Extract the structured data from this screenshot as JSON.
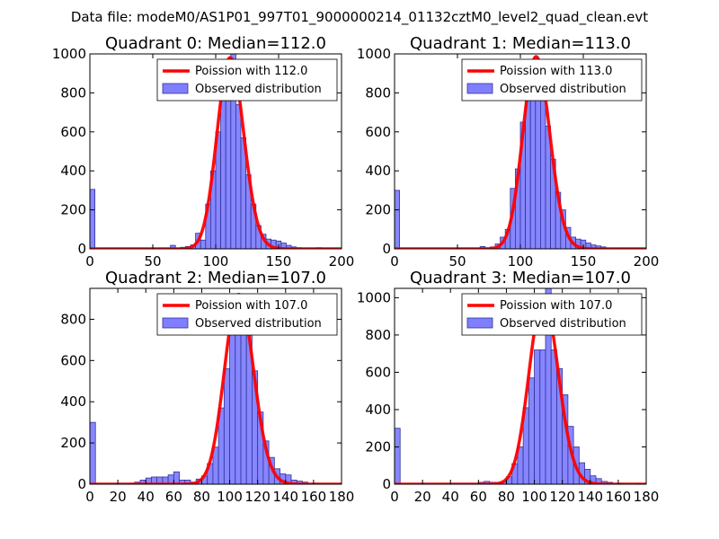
{
  "figure_title": "Data file: modeM0/AS1P01_997T01_9000000214_01132cztM0_level2_quad_clean.evt",
  "colors": {
    "hist_fill": "#7f7fff",
    "hist_edge": "#333399",
    "poisson_line": "#ff0000"
  },
  "chart_data": [
    {
      "type": "bar",
      "title": "Quadrant 0: Median=112.0",
      "median": 112.0,
      "xlim": [
        0,
        200
      ],
      "ylim": [
        0,
        1000
      ],
      "xticks": [
        0,
        50,
        100,
        150,
        200
      ],
      "yticks": [
        0,
        200,
        400,
        600,
        800,
        1000
      ],
      "bin_width": 4,
      "bins": [
        [
          0,
          305
        ],
        [
          64,
          18
        ],
        [
          72,
          8
        ],
        [
          76,
          12
        ],
        [
          80,
          20
        ],
        [
          84,
          80
        ],
        [
          88,
          45
        ],
        [
          92,
          230
        ],
        [
          96,
          400
        ],
        [
          100,
          600
        ],
        [
          104,
          760
        ],
        [
          108,
          760
        ],
        [
          112,
          1000
        ],
        [
          116,
          740
        ],
        [
          120,
          570
        ],
        [
          124,
          380
        ],
        [
          128,
          230
        ],
        [
          132,
          120
        ],
        [
          136,
          75
        ],
        [
          140,
          50
        ],
        [
          144,
          45
        ],
        [
          148,
          40
        ],
        [
          152,
          30
        ],
        [
          156,
          18
        ],
        [
          160,
          10
        ],
        [
          164,
          6
        ],
        [
          180,
          6
        ]
      ],
      "legend": {
        "line_label": "Poission with 112.0",
        "hist_label": "Observed distribution",
        "position": "upper right"
      },
      "poisson": {
        "mean": 112.0,
        "amplitude": 980
      }
    },
    {
      "type": "bar",
      "title": "Quadrant 1: Median=113.0",
      "median": 113.0,
      "xlim": [
        0,
        200
      ],
      "ylim": [
        0,
        1000
      ],
      "xticks": [
        0,
        50,
        100,
        150,
        200
      ],
      "yticks": [
        0,
        200,
        400,
        600,
        800,
        1000
      ],
      "bin_width": 4,
      "bins": [
        [
          0,
          300
        ],
        [
          68,
          12
        ],
        [
          76,
          10
        ],
        [
          80,
          25
        ],
        [
          84,
          60
        ],
        [
          88,
          100
        ],
        [
          92,
          310
        ],
        [
          96,
          410
        ],
        [
          100,
          650
        ],
        [
          104,
          770
        ],
        [
          108,
          790
        ],
        [
          112,
          960
        ],
        [
          116,
          760
        ],
        [
          120,
          630
        ],
        [
          124,
          460
        ],
        [
          128,
          290
        ],
        [
          132,
          200
        ],
        [
          136,
          110
        ],
        [
          140,
          60
        ],
        [
          144,
          50
        ],
        [
          148,
          45
        ],
        [
          152,
          30
        ],
        [
          156,
          20
        ],
        [
          160,
          15
        ],
        [
          164,
          10
        ],
        [
          180,
          5
        ]
      ],
      "legend": {
        "line_label": "Poission with 113.0",
        "hist_label": "Observed distribution",
        "position": "upper right"
      },
      "poisson": {
        "mean": 113.0,
        "amplitude": 985
      }
    },
    {
      "type": "bar",
      "title": "Quadrant 2: Median=107.0",
      "median": 107.0,
      "xlim": [
        0,
        180
      ],
      "ylim": [
        0,
        950
      ],
      "xticks": [
        0,
        20,
        40,
        60,
        80,
        100,
        120,
        140,
        160,
        180
      ],
      "yticks": [
        0,
        200,
        400,
        600,
        800
      ],
      "bin_width": 4,
      "bins": [
        [
          0,
          300
        ],
        [
          28,
          5
        ],
        [
          32,
          10
        ],
        [
          36,
          20
        ],
        [
          40,
          30
        ],
        [
          44,
          35
        ],
        [
          48,
          35
        ],
        [
          52,
          35
        ],
        [
          56,
          45
        ],
        [
          60,
          60
        ],
        [
          64,
          20
        ],
        [
          68,
          20
        ],
        [
          72,
          10
        ],
        [
          76,
          25
        ],
        [
          80,
          40
        ],
        [
          84,
          100
        ],
        [
          88,
          180
        ],
        [
          92,
          370
        ],
        [
          96,
          560
        ],
        [
          100,
          820
        ],
        [
          104,
          740
        ],
        [
          108,
          920
        ],
        [
          112,
          820
        ],
        [
          116,
          550
        ],
        [
          120,
          350
        ],
        [
          124,
          210
        ],
        [
          128,
          130
        ],
        [
          132,
          75
        ],
        [
          136,
          50
        ],
        [
          140,
          45
        ],
        [
          144,
          20
        ],
        [
          148,
          15
        ],
        [
          152,
          10
        ],
        [
          160,
          5
        ]
      ],
      "legend": {
        "line_label": "Poission with 107.0",
        "hist_label": "Observed distribution",
        "position": "upper right"
      },
      "poisson": {
        "mean": 107.0,
        "amplitude": 920
      }
    },
    {
      "type": "bar",
      "title": "Quadrant 3: Median=107.0",
      "median": 107.0,
      "xlim": [
        0,
        180
      ],
      "ylim": [
        0,
        1050
      ],
      "xticks": [
        0,
        20,
        40,
        60,
        80,
        100,
        120,
        140,
        160,
        180
      ],
      "yticks": [
        0,
        200,
        400,
        600,
        800,
        1000
      ],
      "bin_width": 4,
      "bins": [
        [
          0,
          300
        ],
        [
          60,
          10
        ],
        [
          64,
          15
        ],
        [
          68,
          10
        ],
        [
          72,
          10
        ],
        [
          76,
          12
        ],
        [
          80,
          40
        ],
        [
          84,
          110
        ],
        [
          88,
          200
        ],
        [
          92,
          410
        ],
        [
          96,
          570
        ],
        [
          100,
          720
        ],
        [
          104,
          720
        ],
        [
          108,
          1050
        ],
        [
          112,
          720
        ],
        [
          116,
          620
        ],
        [
          120,
          480
        ],
        [
          124,
          310
        ],
        [
          128,
          200
        ],
        [
          132,
          115
        ],
        [
          136,
          80
        ],
        [
          140,
          45
        ],
        [
          144,
          30
        ],
        [
          148,
          15
        ],
        [
          152,
          10
        ],
        [
          160,
          5
        ],
        [
          172,
          5
        ]
      ],
      "legend": {
        "line_label": "Poission with 107.0",
        "hist_label": "Observed distribution",
        "position": "upper right"
      },
      "poisson": {
        "mean": 107.0,
        "amplitude": 1000
      }
    }
  ]
}
